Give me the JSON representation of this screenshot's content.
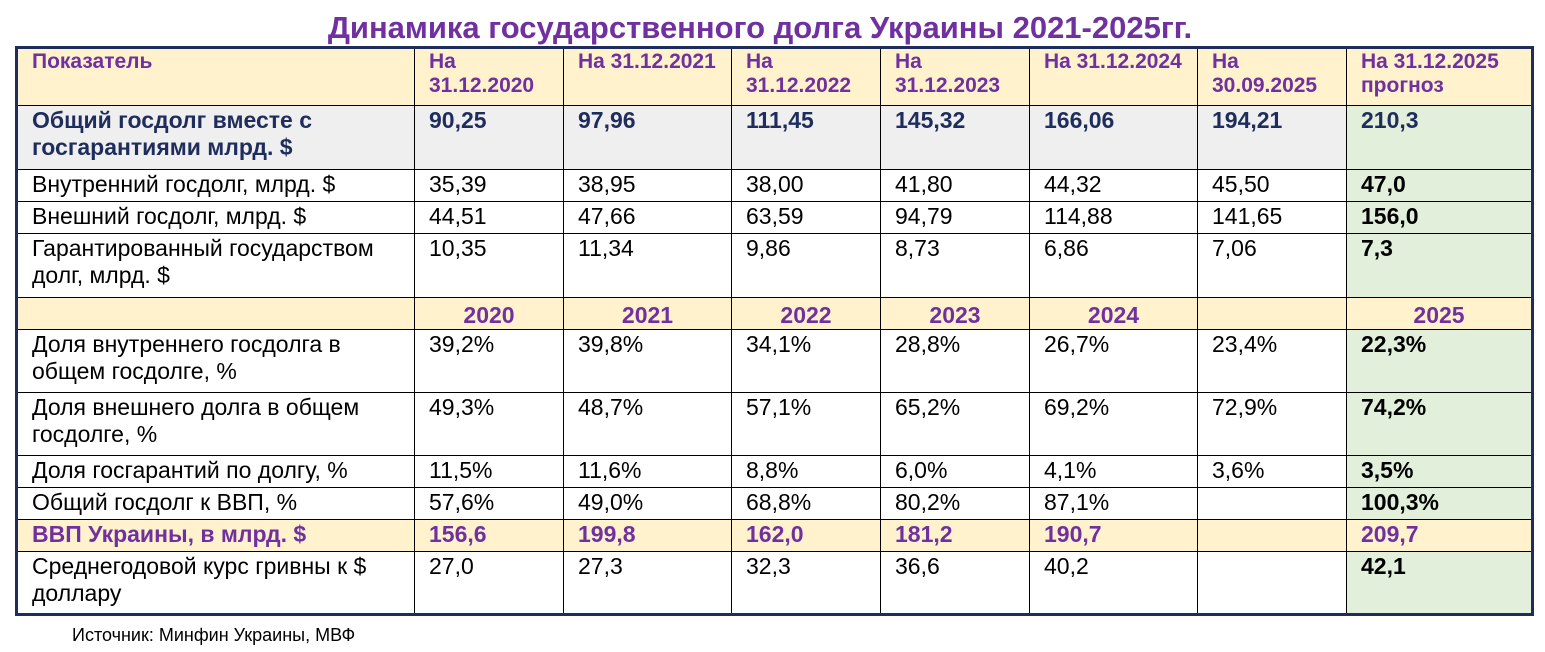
{
  "title": "Динамика государственного долга Украины 2021-2025гг.",
  "header": {
    "label": "Показатель",
    "columns": [
      "На 31.12.2020",
      "На 31.12.2021",
      "На 31.12.2022",
      "На 31.12.2023",
      "На 31.12.2024",
      "На 30.09.2025",
      "На 31.12.2025 прогноз"
    ]
  },
  "rows_debt": [
    {
      "label": "Общий госдолг вместе с госгарантиями млрд. $",
      "values": [
        "90,25",
        "97,96",
        "111,45",
        "145,32",
        "166,06",
        "194,21",
        "210,3"
      ]
    },
    {
      "label": "Внутренний госдолг, млрд. $",
      "values": [
        "35,39",
        "38,95",
        "38,00",
        "41,80",
        "44,32",
        "45,50",
        "47,0"
      ]
    },
    {
      "label": "Внешний госдолг, млрд. $",
      "values": [
        "44,51",
        "47,66",
        "63,59",
        "94,79",
        "114,88",
        "141,65",
        "156,0"
      ]
    },
    {
      "label": "Гарантированный государством долг, млрд. $",
      "values": [
        "10,35",
        "11,34",
        "9,86",
        "8,73",
        "6,86",
        "7,06",
        "7,3"
      ]
    }
  ],
  "years": [
    "2020",
    "2021",
    "2022",
    "2023",
    "2024",
    "",
    "2025"
  ],
  "rows_ratio": [
    {
      "label": "Доля внутреннего госдолга в общем госдолге, %",
      "values": [
        "39,2%",
        "39,8%",
        "34,1%",
        "28,8%",
        "26,7%",
        "23,4%",
        "22,3%"
      ]
    },
    {
      "label": "Доля внешнего долга в общем госдолге, %",
      "values": [
        "49,3%",
        "48,7%",
        "57,1%",
        "65,2%",
        "69,2%",
        "72,9%",
        "74,2%"
      ]
    },
    {
      "label": "Доля госгарантий по долгу, %",
      "values": [
        "11,5%",
        "11,6%",
        "8,8%",
        "6,0%",
        "4,1%",
        "3,6%",
        "3,5%"
      ]
    },
    {
      "label": "Общий госдолг к ВВП, %",
      "values": [
        "57,6%",
        "49,0%",
        "68,8%",
        "80,2%",
        "87,1%",
        "",
        "100,3%"
      ]
    }
  ],
  "gdp": {
    "label": "ВВП Украины, в млрд. $",
    "values": [
      "156,6",
      "199,8",
      "162,0",
      "181,2",
      "190,7",
      "",
      "209,7"
    ]
  },
  "fx": {
    "label": "Среднегодовой курс гривны к $ доллару",
    "values": [
      "27,0",
      "27,3",
      "32,3",
      "36,6",
      "40,2",
      "",
      "42,1"
    ]
  },
  "source": "Источник: Минфин Украины, МВФ",
  "colors": {
    "title": "#7030a0",
    "header_bg": "#fff2cc",
    "forecast_bg": "#e2efda",
    "total_text": "#1f2d5c"
  }
}
